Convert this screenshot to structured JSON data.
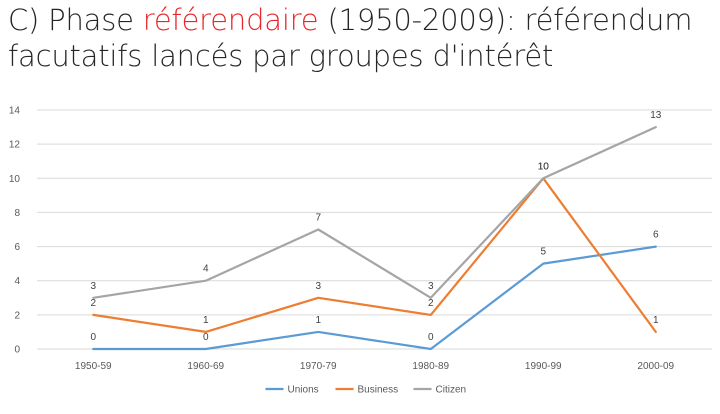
{
  "title": {
    "prefix": "C) Phase ",
    "highlight": "référendaire",
    "suffix": " (1950-2009): référendum",
    "line2": "facutatifs lancés par groupes d'intérêt"
  },
  "colors": {
    "highlight": "#e8262b",
    "Unions": "#5b9bd5",
    "Business": "#ed7d31",
    "Citizen": "#a5a5a5",
    "grid": "#d9d9d9"
  },
  "chart_data": {
    "type": "line",
    "categories": [
      "1950-59",
      "1960-69",
      "1970-79",
      "1980-89",
      "1990-99",
      "2000-09"
    ],
    "series": [
      {
        "name": "Unions",
        "values": [
          0,
          0,
          1,
          0,
          5,
          6
        ]
      },
      {
        "name": "Business",
        "values": [
          2,
          1,
          3,
          2,
          10,
          1
        ]
      },
      {
        "name": "Citizen",
        "values": [
          3,
          4,
          7,
          3,
          10,
          13
        ]
      }
    ],
    "ylim": [
      0,
      14
    ],
    "yticks": [
      0,
      2,
      4,
      6,
      8,
      10,
      12,
      14
    ],
    "grid": true,
    "legend": "bottom",
    "data_labels": true
  }
}
